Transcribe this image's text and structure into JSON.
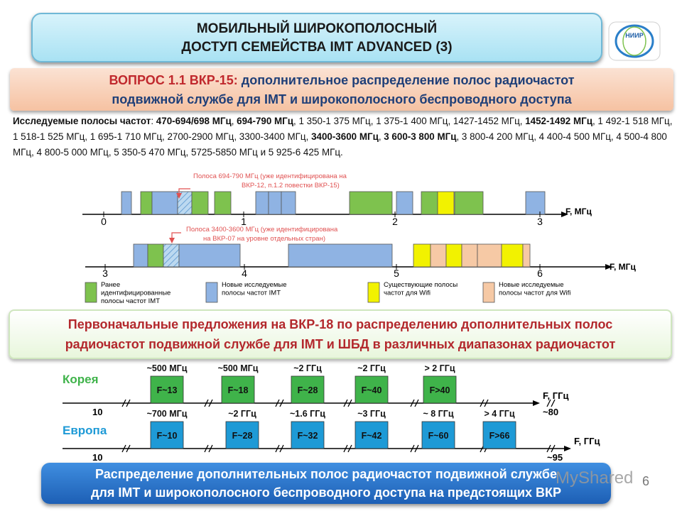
{
  "title": {
    "line1": "МОБИЛЬНЫЙ ШИРОКОПОЛОСНЫЙ",
    "line2": "ДОСТУП СЕМЕЙСТВА IMT ADVANCED (3)"
  },
  "logo": {
    "text": "НИИР"
  },
  "question": {
    "prefix": "ВОПРОС 1.1 ВКР-15:",
    "line1_rest": " дополнительное распределение полос радиочастот",
    "line2": "подвижной службе для IMT и широкополосного беспроводного доступа"
  },
  "bands": {
    "label": "Исследуемые полосы частот",
    "items": [
      {
        "text": "470-694/698 МГц",
        "bold": true
      },
      {
        "text": "694-790 МГц",
        "bold": true
      },
      {
        "text": "1 350-1 375 МГц",
        "bold": false
      },
      {
        "text": "1 375-1 400 МГц",
        "bold": false
      },
      {
        "text": "1427-1452 МГц",
        "bold": false
      },
      {
        "text": "1452-1492 МГц",
        "bold": true
      },
      {
        "text": "1 492-1 518 МГц",
        "bold": false
      },
      {
        "text": "1 518-1 525 МГц",
        "bold": false
      },
      {
        "text": "1 695-1 710 МГц",
        "bold": false
      },
      {
        "text": "2700-2900 МГц",
        "bold": false
      },
      {
        "text": "3300-3400 МГц",
        "bold": false
      },
      {
        "text": "3400-3600 МГц",
        "bold": true
      },
      {
        "text": "3 600-3 800 МГц",
        "bold": true
      },
      {
        "text": "3 800-4 200 МГц",
        "bold": false
      },
      {
        "text": "4 400-4 500 МГц",
        "bold": false
      },
      {
        "text": "4 500-4 800 МГц",
        "bold": false
      },
      {
        "text": "4 800-5 000 МГц",
        "bold": false
      },
      {
        "text": "5 350-5 470 МГц",
        "bold": false
      },
      {
        "text": "5725-5850 МГц",
        "bold": false
      },
      {
        "text": "5 925-6 425 МГц",
        "bold": false
      }
    ],
    "conjunction": "и"
  },
  "band_chart": {
    "callout1": [
      "Полоса 694-790 МГц (уже идентифицирована на",
      "ВКР-12, п.1.2 повестки ВКР-15)"
    ],
    "callout2": [
      "Полоса 3400-3600 МГц (уже идентифицирована",
      "на ВКР-07 на уровне отдельных стран)"
    ],
    "axis_label": "F, МГц",
    "row1_ticks": [
      "0",
      "1",
      "2",
      "3"
    ],
    "row2_ticks": [
      "3",
      "4",
      "5",
      "6"
    ],
    "legend": [
      {
        "label": "Ранее идентифицированные полосы частот IMT",
        "color": "#7ec24e"
      },
      {
        "label": "Новые исследуемые полосы частот IMT",
        "color": "#8fb3e3"
      },
      {
        "label": "Существующие полосы частот для Wifi",
        "color": "#f2f200"
      },
      {
        "label": "Новые исследуемые полосы частот для Wifi",
        "color": "#f6c9a5"
      }
    ],
    "colors": {
      "imt_identified": "#7ec24e",
      "imt_new": "#8fb3e3",
      "wifi": "#f2f200",
      "wifi_new": "#f6c9a5",
      "hatched": "#bcd9f0"
    }
  },
  "proposals": {
    "line1": "Первоначальные предложения на ВКР-18 по распределению дополнительных полос",
    "line2": "радиочастот подвижной службе для IMT и ШБД в различных диапазонах радиочастот"
  },
  "korea": {
    "label": "Корея",
    "start": "10",
    "end": "~80",
    "axis": "F, ГГц",
    "blocks": [
      {
        "bw": "~500 МГц",
        "f": "F~13"
      },
      {
        "bw": "~500 МГц",
        "f": "F~18"
      },
      {
        "bw": "~2 ГГц",
        "f": "F~28"
      },
      {
        "bw": "~2 ГГц",
        "f": "F~40"
      },
      {
        "bw": "> 2 ГГц",
        "f": "F>40"
      }
    ],
    "color": "#3fb34a"
  },
  "europe": {
    "label": "Европа",
    "start": "10",
    "end": "~95",
    "axis": "F, ГГц",
    "blocks": [
      {
        "bw": "~700 МГц",
        "f": "F~10"
      },
      {
        "bw": "~2 ГГц",
        "f": "F~28"
      },
      {
        "bw": "~1.6 ГГц",
        "f": "F~32"
      },
      {
        "bw": "~3 ГГц",
        "f": "F~42"
      },
      {
        "bw": "~ 8 ГГц",
        "f": "F~60"
      },
      {
        "bw": "> 4 ГГц",
        "f": "F>66"
      }
    ],
    "color": "#1e9ad6"
  },
  "bottom": {
    "line1": "Распределение дополнительных полос радиочастот подвижной службе",
    "line2": "для IMT и широкополосного беспроводного доступа на предстоящих ВКР"
  },
  "watermark": "MyShared",
  "page_number": "6"
}
